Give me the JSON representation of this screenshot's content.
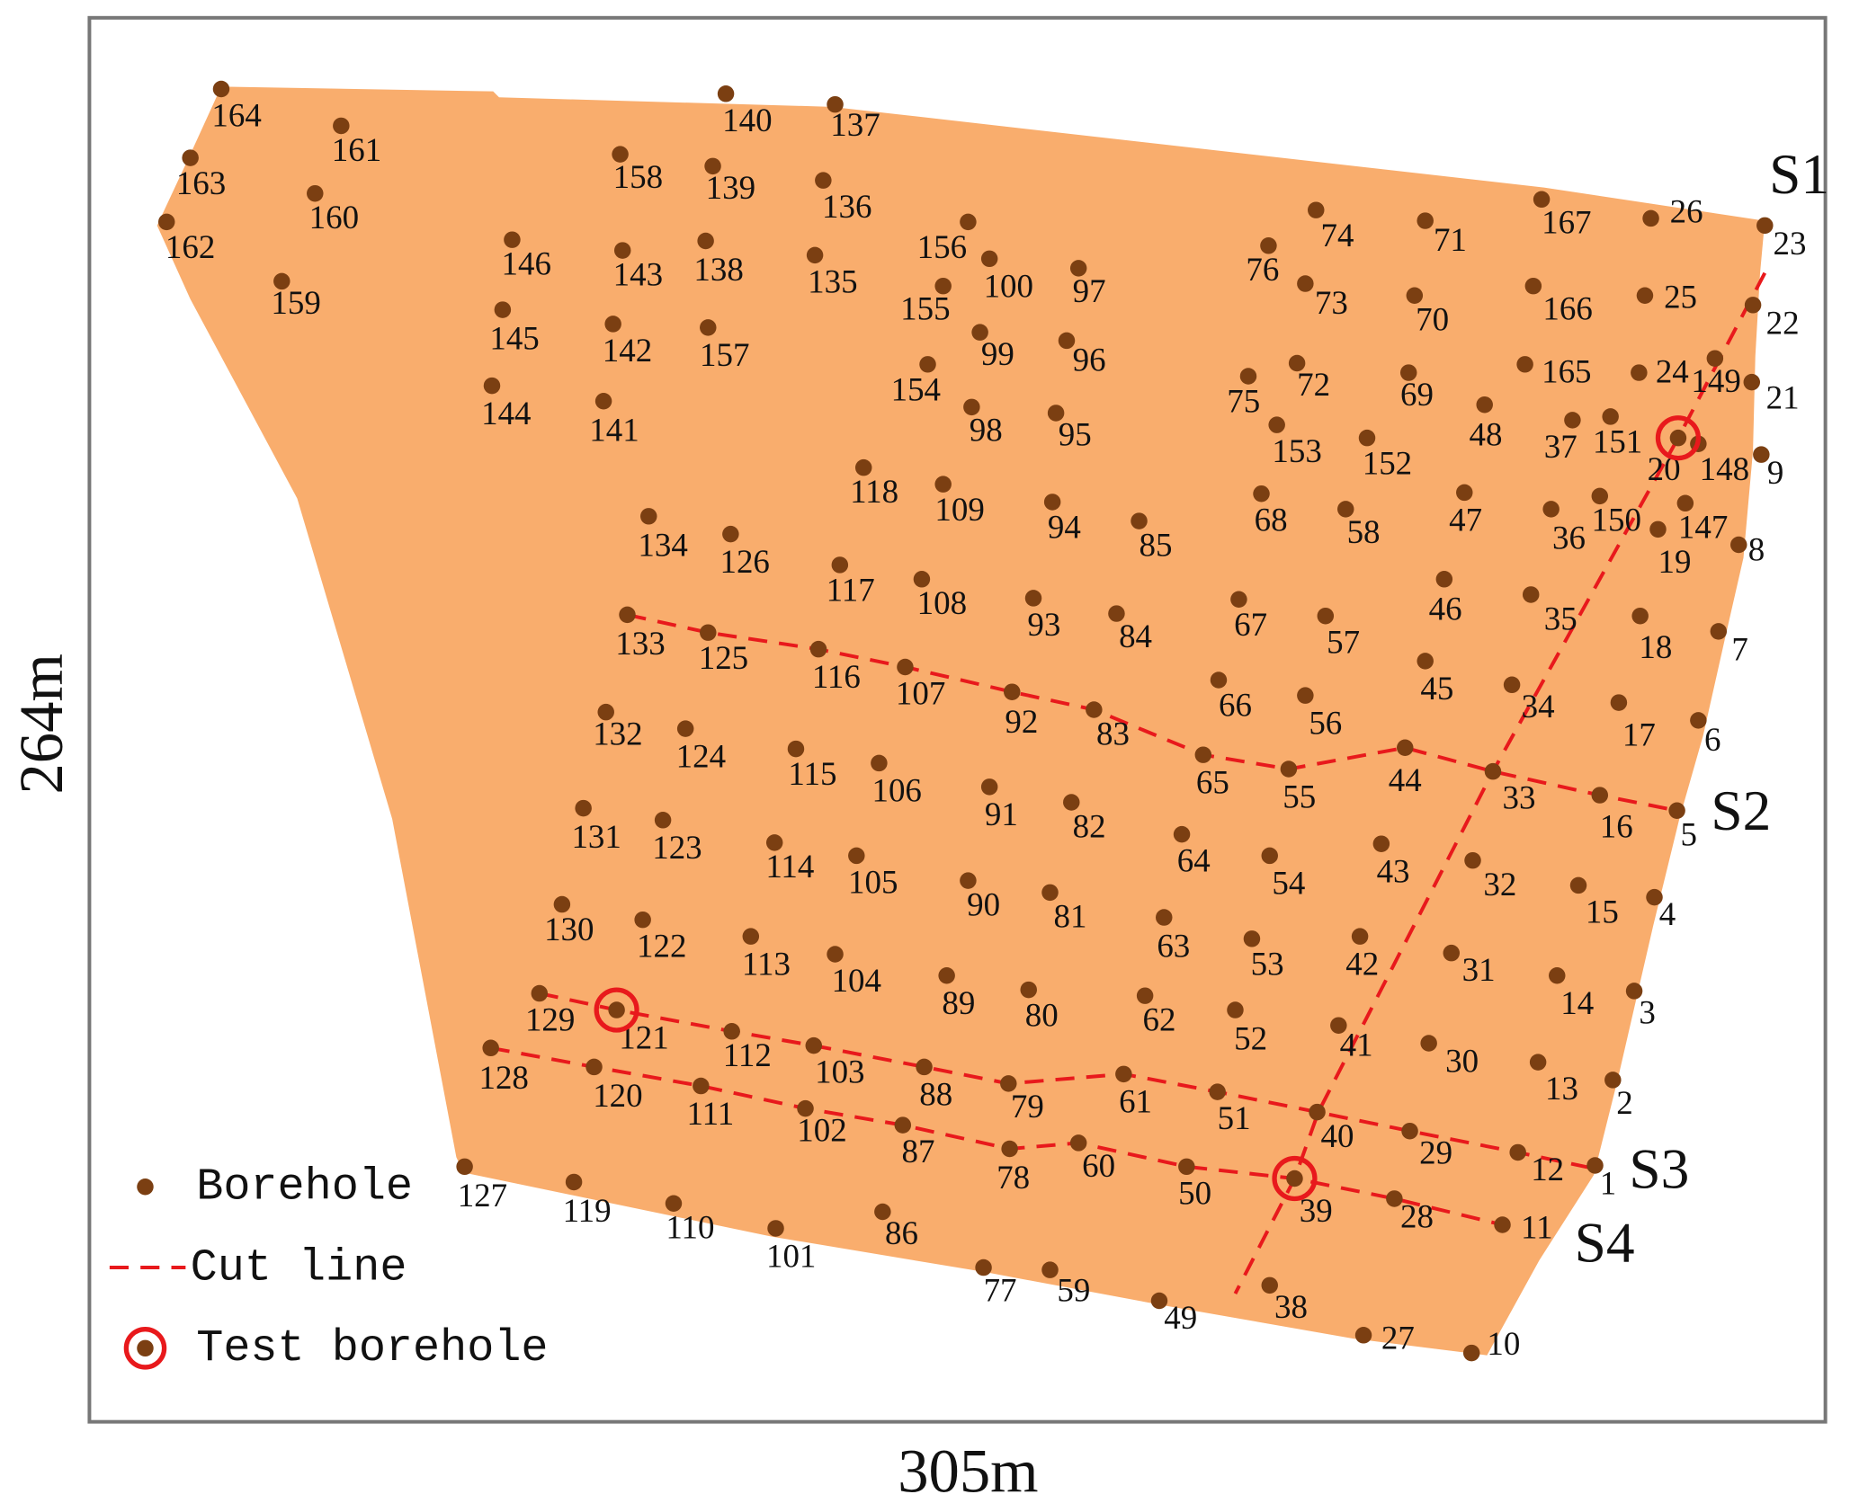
{
  "axes": {
    "height": "264m",
    "width": "305m"
  },
  "sections": [
    "S1",
    "S2",
    "S3",
    "S4"
  ],
  "legend": [
    "Borehole",
    "Cut line",
    "Test borehole"
  ],
  "boreholes": [
    164,
    161,
    163,
    160,
    162,
    159,
    146,
    145,
    144,
    158,
    143,
    142,
    141,
    140,
    139,
    138,
    157,
    137,
    136,
    135,
    156,
    100,
    155,
    97,
    99,
    96,
    154,
    98,
    95,
    118,
    109,
    94,
    85,
    134,
    126,
    117,
    108,
    93,
    84,
    133,
    125,
    116,
    107,
    92,
    83,
    132,
    124,
    115,
    106,
    91,
    82,
    131,
    123,
    114,
    105,
    90,
    81,
    130,
    122,
    113,
    104,
    89,
    80,
    129,
    121,
    112,
    103,
    88,
    79,
    128,
    120,
    111,
    102,
    87,
    78,
    127,
    119,
    110,
    101,
    86,
    77,
    59,
    49,
    60,
    50,
    39,
    38,
    27,
    10,
    28,
    11,
    1,
    12,
    29,
    40,
    51,
    61,
    62,
    52,
    41,
    30,
    13,
    2,
    3,
    14,
    31,
    42,
    53,
    63,
    4,
    15,
    32,
    43,
    54,
    64,
    5,
    16,
    33,
    44,
    55,
    65,
    6,
    17,
    34,
    45,
    56,
    66,
    7,
    18,
    35,
    46,
    57,
    67,
    8,
    19,
    147,
    150,
    36,
    47,
    58,
    68,
    9,
    148,
    20,
    151,
    37,
    48,
    152,
    153,
    21,
    149,
    24,
    165,
    69,
    72,
    75,
    22,
    25,
    166,
    70,
    73,
    76,
    23,
    26,
    167,
    71,
    74
  ]
}
